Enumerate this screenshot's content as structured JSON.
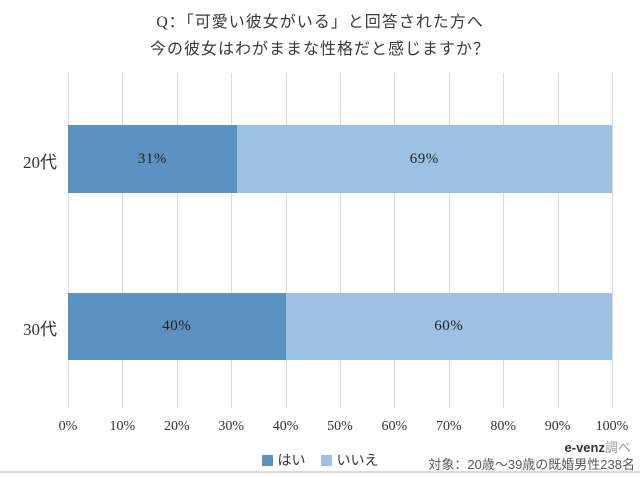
{
  "title": {
    "line1": "Q：「可愛い彼女がいる」と回答された方へ",
    "line2": "今の彼女はわがままな性格だと感じますか？"
  },
  "chart_data": {
    "type": "bar",
    "subtype": "horizontal-stacked",
    "title": "Q：「可愛い彼女がいる」と回答された方へ 今の彼女はわがままな性格だと感じますか？",
    "categories": [
      "20代",
      "30代"
    ],
    "series": [
      {
        "name": "はい",
        "color": "#5b92c1",
        "values": [
          31,
          40
        ]
      },
      {
        "name": "いいえ",
        "color": "#9dc1e3",
        "values": [
          69,
          60
        ]
      }
    ],
    "value_labels": [
      [
        "31%",
        "69%"
      ],
      [
        "40%",
        "60%"
      ]
    ],
    "xlim": [
      0,
      100
    ],
    "x_ticks": [
      "0%",
      "10%",
      "20%",
      "30%",
      "40%",
      "50%",
      "60%",
      "70%",
      "80%",
      "90%",
      "100%"
    ],
    "grid": "vertical-only",
    "gridline_color": "#dcdcdc",
    "legend_position": "bottom-center"
  },
  "legend": {
    "items": [
      {
        "label": "はい",
        "color": "#5b92c1"
      },
      {
        "label": "いいえ",
        "color": "#9dc1e3"
      }
    ]
  },
  "footer": {
    "source_bold": "e-venz",
    "source_rest": "調べ",
    "note": "対象：20歳〜39歳の既婚男性238名"
  }
}
